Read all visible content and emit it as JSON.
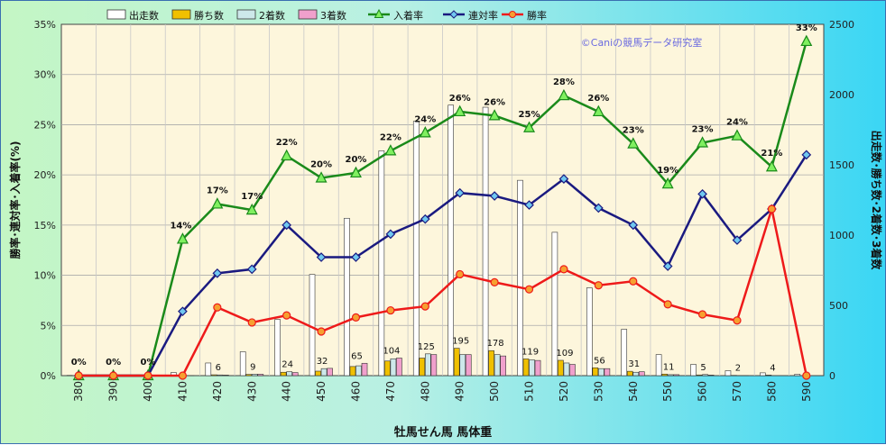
{
  "chart_data": {
    "type": "bar+line",
    "xlabel": "牡馬せん馬 馬体重",
    "ylabel_left": "勝率･連対率･入着率(%)",
    "ylabel_right": "出走数･勝ち数･2着数･3着数",
    "credit": "©Caniの競馬データ研究室",
    "categories": [
      "380",
      "390",
      "400",
      "410",
      "420",
      "430",
      "440",
      "450",
      "460",
      "470",
      "480",
      "490",
      "500",
      "510",
      "520",
      "530",
      "540",
      "550",
      "560",
      "570",
      "580",
      "590"
    ],
    "ylim_left": [
      0,
      35
    ],
    "ylim_right": [
      0,
      2500
    ],
    "yticks_left": [
      "0%",
      "5%",
      "10%",
      "15%",
      "20%",
      "25%",
      "30%",
      "35%"
    ],
    "yticks_right": [
      "0",
      "500",
      "1000",
      "1500",
      "2000",
      "2500"
    ],
    "grid": true,
    "legend_position": "top",
    "bar_series": [
      {
        "name": "出走数",
        "color": "#ffffff",
        "values": [
          2,
          2,
          5,
          22,
          90,
          170,
          400,
          720,
          1120,
          1600,
          1810,
          1925,
          1910,
          1390,
          1020,
          625,
          330,
          150,
          80,
          35,
          20,
          10
        ]
      },
      {
        "name": "勝ち数",
        "color": "#f0c000",
        "values": [
          0,
          0,
          0,
          0,
          6,
          9,
          24,
          32,
          65,
          104,
          125,
          195,
          178,
          119,
          109,
          56,
          31,
          11,
          5,
          2,
          4,
          0
        ]
      },
      {
        "name": "2着数",
        "color": "#cde8ea",
        "values": [
          0,
          0,
          0,
          1,
          5,
          10,
          28,
          50,
          70,
          120,
          155,
          150,
          150,
          112,
          90,
          50,
          24,
          7,
          8,
          1,
          0,
          0
        ]
      },
      {
        "name": "3着数",
        "color": "#f0a0cc",
        "values": [
          0,
          0,
          0,
          1,
          4,
          10,
          22,
          52,
          88,
          125,
          150,
          150,
          140,
          108,
          80,
          50,
          28,
          7,
          4,
          1,
          0,
          0
        ]
      }
    ],
    "line_series": [
      {
        "name": "入着率",
        "color": "#1a8a1a",
        "marker": "triangle",
        "marker_color": "#80f060",
        "values": [
          0,
          0,
          0,
          13.6,
          17.1,
          16.5,
          21.9,
          19.7,
          20.2,
          22.4,
          24.2,
          26.3,
          25.9,
          24.7,
          27.9,
          26.3,
          23.1,
          19.1,
          23.2,
          23.9,
          20.8,
          33.3
        ]
      },
      {
        "name": "連対率",
        "color": "#1a1a80",
        "marker": "diamond",
        "marker_color": "#70c8f0",
        "values": [
          0,
          0,
          0,
          6.4,
          10.2,
          10.6,
          15.0,
          11.8,
          11.8,
          14.1,
          15.6,
          18.2,
          17.9,
          17.0,
          19.6,
          16.7,
          15.0,
          10.9,
          18.1,
          13.5,
          16.6,
          22.0
        ]
      },
      {
        "name": "勝率",
        "color": "#ee1a1a",
        "marker": "circle",
        "marker_color": "#f6a030",
        "values": [
          0,
          0,
          0,
          0,
          6.8,
          5.3,
          6.0,
          4.4,
          5.8,
          6.5,
          6.9,
          10.1,
          9.3,
          8.6,
          10.6,
          9.0,
          9.4,
          7.1,
          6.1,
          5.5,
          16.6,
          0
        ]
      }
    ],
    "annotations": {
      "入着率": [
        "0%",
        "0%",
        "0%",
        "14%",
        "17%",
        "17%",
        "22%",
        "20%",
        "20%",
        "22%",
        "24%",
        "26%",
        "26%",
        "25%",
        "28%",
        "26%",
        "23%",
        "19%",
        "23%",
        "24%",
        "21%",
        "33%"
      ],
      "勝ち数": [
        "",
        "",
        "",
        "",
        "6",
        "9",
        "24",
        "32",
        "65",
        "104",
        "125",
        "195",
        "178",
        "119",
        "109",
        "56",
        "31",
        "11",
        "5",
        "2",
        "4",
        ""
      ]
    }
  }
}
